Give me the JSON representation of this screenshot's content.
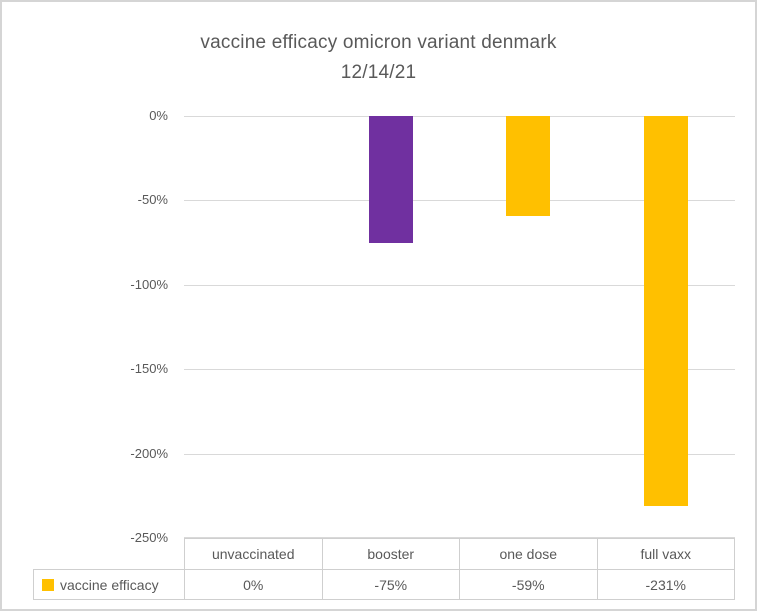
{
  "title": {
    "line1": "vaccine efficacy omicron variant denmark",
    "line2": "12/14/21"
  },
  "chart_data": {
    "type": "bar",
    "title": "vaccine efficacy omicron variant denmark 12/14/21",
    "categories": [
      "unvaccinated",
      "booster",
      "one dose",
      "full vaxx"
    ],
    "series": [
      {
        "name": "vaccine efficacy",
        "values": [
          0,
          -75,
          -59,
          -231
        ],
        "value_labels": [
          "0%",
          "-75%",
          "-59%",
          "-231%"
        ],
        "point_colors": [
          "#FFC000",
          "#7030A0",
          "#FFC000",
          "#FFC000"
        ]
      }
    ],
    "xlabel": "",
    "ylabel": "",
    "ylim": [
      -250,
      0
    ],
    "ytick_labels": [
      "0%",
      "-50%",
      "-100%",
      "-150%",
      "-200%",
      "-250%"
    ],
    "grid": true,
    "legend_position": "data-table-left",
    "colors": {
      "gold": "#FFC000",
      "purple": "#7030A0",
      "text": "#595959",
      "gridline": "#D9D9D9",
      "table_border": "#CFCFCF",
      "canvas_border": "#D5D5D5"
    }
  },
  "data_table": {
    "legend_label": "vaccine efficacy",
    "legend_swatch_color": "#FFC000",
    "columns": [
      "unvaccinated",
      "booster",
      "one dose",
      "full vaxx"
    ],
    "values": [
      "0%",
      "-75%",
      "-59%",
      "-231%"
    ]
  }
}
